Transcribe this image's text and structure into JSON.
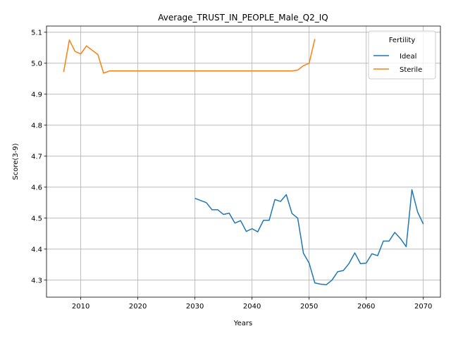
{
  "chart_data": {
    "type": "line",
    "title": "Average_TRUST_IN_PEOPLE_Male_Q2_IQ",
    "xlabel": "Years",
    "ylabel": "Score(3-9)",
    "xlim": [
      2004,
      2073
    ],
    "ylim": [
      4.245,
      5.12
    ],
    "xticks": [
      2010,
      2020,
      2030,
      2040,
      2050,
      2060,
      2070
    ],
    "yticks": [
      4.3,
      4.4,
      4.5,
      4.6,
      4.7,
      4.8,
      4.9,
      5.0,
      5.1
    ],
    "xtick_labels": [
      "2010",
      "2020",
      "2030",
      "2040",
      "2050",
      "2060",
      "2070"
    ],
    "ytick_labels": [
      "4.3",
      "4.4",
      "4.5",
      "4.6",
      "4.7",
      "4.8",
      "4.9",
      "5.0",
      "5.1"
    ],
    "grid": true,
    "legend": {
      "title": "Fertility",
      "position": "top-right"
    },
    "series": [
      {
        "name": "Ideal",
        "color": "#1f77b4",
        "x": [
          2030,
          2031,
          2032,
          2033,
          2034,
          2035,
          2036,
          2037,
          2038,
          2039,
          2040,
          2041,
          2042,
          2043,
          2044,
          2045,
          2046,
          2047,
          2048,
          2049,
          2050,
          2051,
          2052,
          2053,
          2054,
          2055,
          2056,
          2057,
          2058,
          2059,
          2060,
          2061,
          2062,
          2063,
          2064,
          2065,
          2066,
          2067,
          2068,
          2069,
          2070
        ],
        "values": [
          4.564,
          4.557,
          4.55,
          4.527,
          4.527,
          4.512,
          4.516,
          4.484,
          4.492,
          4.457,
          4.466,
          4.456,
          4.493,
          4.493,
          4.56,
          4.554,
          4.576,
          4.515,
          4.5,
          4.387,
          4.355,
          4.291,
          4.287,
          4.285,
          4.3,
          4.327,
          4.331,
          4.354,
          4.388,
          4.353,
          4.355,
          4.385,
          4.379,
          4.426,
          4.426,
          4.454,
          4.434,
          4.408,
          4.592,
          4.52,
          4.481
        ]
      },
      {
        "name": "Sterile",
        "color": "#ff7f0e",
        "x": [
          2007,
          2008,
          2009,
          2010,
          2011,
          2012,
          2013,
          2014,
          2015,
          2016,
          2017,
          2018,
          2019,
          2020,
          2021,
          2022,
          2023,
          2024,
          2025,
          2026,
          2027,
          2028,
          2029,
          2030,
          2031,
          2032,
          2033,
          2034,
          2035,
          2036,
          2037,
          2038,
          2039,
          2040,
          2041,
          2042,
          2043,
          2044,
          2045,
          2046,
          2047,
          2048,
          2049,
          2050,
          2051
        ],
        "values": [
          4.972,
          5.075,
          5.038,
          5.03,
          5.056,
          5.042,
          5.028,
          4.968,
          4.975,
          4.975,
          4.975,
          4.975,
          4.975,
          4.975,
          4.975,
          4.975,
          4.975,
          4.975,
          4.975,
          4.975,
          4.975,
          4.975,
          4.975,
          4.975,
          4.975,
          4.975,
          4.975,
          4.975,
          4.975,
          4.975,
          4.975,
          4.975,
          4.975,
          4.975,
          4.975,
          4.975,
          4.975,
          4.975,
          4.975,
          4.975,
          4.975,
          4.978,
          4.992,
          5.0,
          5.078
        ]
      }
    ]
  }
}
